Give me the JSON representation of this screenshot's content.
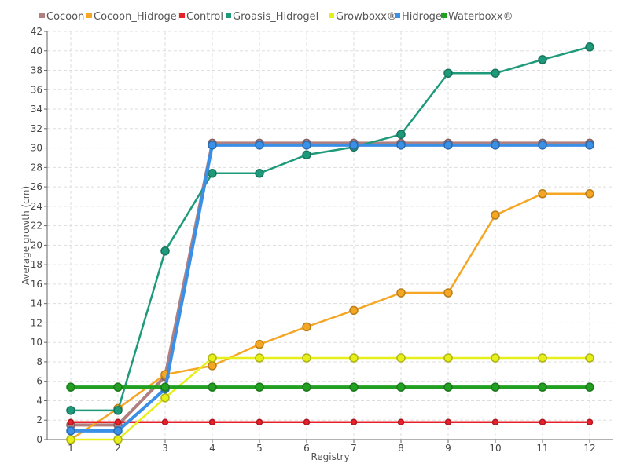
{
  "chart_data": {
    "type": "line",
    "title": "",
    "xlabel": "Registry",
    "ylabel": "Average growth (cm)",
    "categories": [
      "1",
      "2",
      "3",
      "4",
      "5",
      "6",
      "7",
      "8",
      "9",
      "10",
      "11",
      "12"
    ],
    "ylim": [
      0,
      42
    ],
    "yticks": [
      0,
      2,
      4,
      6,
      8,
      10,
      12,
      14,
      16,
      18,
      20,
      22,
      24,
      26,
      28,
      30,
      32,
      34,
      36,
      38,
      40,
      42
    ],
    "grid": true,
    "legend_position": "top-left",
    "series": [
      {
        "name": "Cocoon",
        "color": "#b08080",
        "values": [
          1.5,
          1.5,
          6.5,
          30.5,
          30.5,
          30.5,
          30.5,
          30.5,
          30.5,
          30.5,
          30.5,
          30.5
        ]
      },
      {
        "name": "Cocoon_Hidrogel",
        "color": "#f5a623",
        "values": [
          0,
          3.2,
          6.7,
          7.6,
          9.8,
          11.6,
          13.3,
          15.1,
          15.1,
          23.1,
          25.3,
          25.3
        ]
      },
      {
        "name": "Control",
        "color": "#e8202a",
        "values": [
          1.8,
          1.8,
          1.8,
          1.8,
          1.8,
          1.8,
          1.8,
          1.8,
          1.8,
          1.8,
          1.8,
          1.8
        ]
      },
      {
        "name": "Groasis_Hidrogel",
        "color": "#1e9a7a",
        "values": [
          3.0,
          3.0,
          19.4,
          27.4,
          27.4,
          29.3,
          30.1,
          31.4,
          37.7,
          37.7,
          39.1,
          40.4
        ]
      },
      {
        "name": "Growboxx®",
        "color": "#e6ef1a",
        "values": [
          0,
          0,
          4.3,
          8.4,
          8.4,
          8.4,
          8.4,
          8.4,
          8.4,
          8.4,
          8.4,
          8.4
        ]
      },
      {
        "name": "Hidrogel",
        "color": "#3a8fe6",
        "values": [
          0.9,
          0.9,
          5.2,
          30.3,
          30.3,
          30.3,
          30.3,
          30.3,
          30.3,
          30.3,
          30.3,
          30.3
        ]
      },
      {
        "name": "Waterboxx®",
        "color": "#22a022",
        "values": [
          5.4,
          5.4,
          5.4,
          5.4,
          5.4,
          5.4,
          5.4,
          5.4,
          5.4,
          5.4,
          5.4,
          5.4
        ]
      }
    ]
  }
}
